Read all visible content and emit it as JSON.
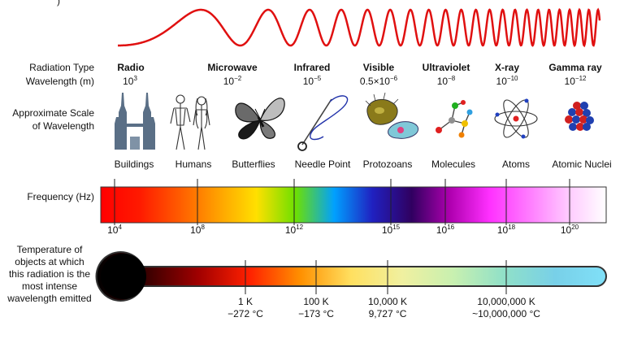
{
  "top_fragment": ")",
  "labels": {
    "radiation_type": "Radiation Type",
    "wavelength": "Wavelength (m)",
    "scale_line1": "Approximate Scale",
    "scale_line2": "of Wavelength",
    "frequency": "Frequency (Hz)",
    "temperature_lines": [
      "Temperature of",
      "objects at which",
      "this radiation is the",
      "most intense",
      "wavelength emitted"
    ]
  },
  "bands": [
    {
      "type": "Radio",
      "wl_base": "10",
      "wl_exp": "3",
      "object": "Buildings",
      "icon": "buildings-icon"
    },
    {
      "type": "Microwave",
      "wl_base": "10",
      "wl_exp": "−2",
      "object": "Humans",
      "icon": "humans-icon"
    },
    {
      "type": "",
      "wl_base": "",
      "wl_exp": "",
      "object": "Butterflies",
      "icon": "butterfly-icon"
    },
    {
      "type": "Infrared",
      "wl_base": "10",
      "wl_exp": "−5",
      "object": "Needle Point",
      "icon": "needle-icon"
    },
    {
      "type": "Visible",
      "wl_base": "0.5×10",
      "wl_exp": "−6",
      "object": "Protozoans",
      "icon": "protozoa-icon"
    },
    {
      "type": "Ultraviolet",
      "wl_base": "10",
      "wl_exp": "−8",
      "object": "Molecules",
      "icon": "molecule-icon"
    },
    {
      "type": "X-ray",
      "wl_base": "10",
      "wl_exp": "−10",
      "object": "Atoms",
      "icon": "atom-icon"
    },
    {
      "type": "Gamma ray",
      "wl_base": "10",
      "wl_exp": "−12",
      "object": "Atomic Nuclei",
      "icon": "nucleus-icon"
    }
  ],
  "frequency_ticks": [
    {
      "base": "10",
      "exp": "4"
    },
    {
      "base": "10",
      "exp": "8"
    },
    {
      "base": "10",
      "exp": "12"
    },
    {
      "base": "10",
      "exp": "15"
    },
    {
      "base": "10",
      "exp": "16"
    },
    {
      "base": "10",
      "exp": "18"
    },
    {
      "base": "10",
      "exp": "20"
    }
  ],
  "temperature_ticks": [
    {
      "k": "1 K",
      "c": "−272 °C"
    },
    {
      "k": "100 K",
      "c": "−173 °C"
    },
    {
      "k": "10,000 K",
      "c": "9,727 °C"
    },
    {
      "k": "10,000,000 K",
      "c": "~10,000,000 °C"
    }
  ],
  "colors": {
    "wave": "#e01010",
    "spectrum": [
      "#ff0000",
      "#ff1a00",
      "#ff5a00",
      "#ffa000",
      "#ffe000",
      "#6ee000",
      "#00a0ff",
      "#2020c0",
      "#300060",
      "#b000b0",
      "#ff30ff",
      "#ff7aff",
      "#ffc8ff",
      "#ffffff"
    ],
    "thermometer": [
      "#000000",
      "#3a0000",
      "#a00000",
      "#ff2000",
      "#ff9000",
      "#ffe060",
      "#f0f0a0",
      "#c8f0b0",
      "#90e0c8",
      "#78d0e8",
      "#80e0f8"
    ]
  }
}
